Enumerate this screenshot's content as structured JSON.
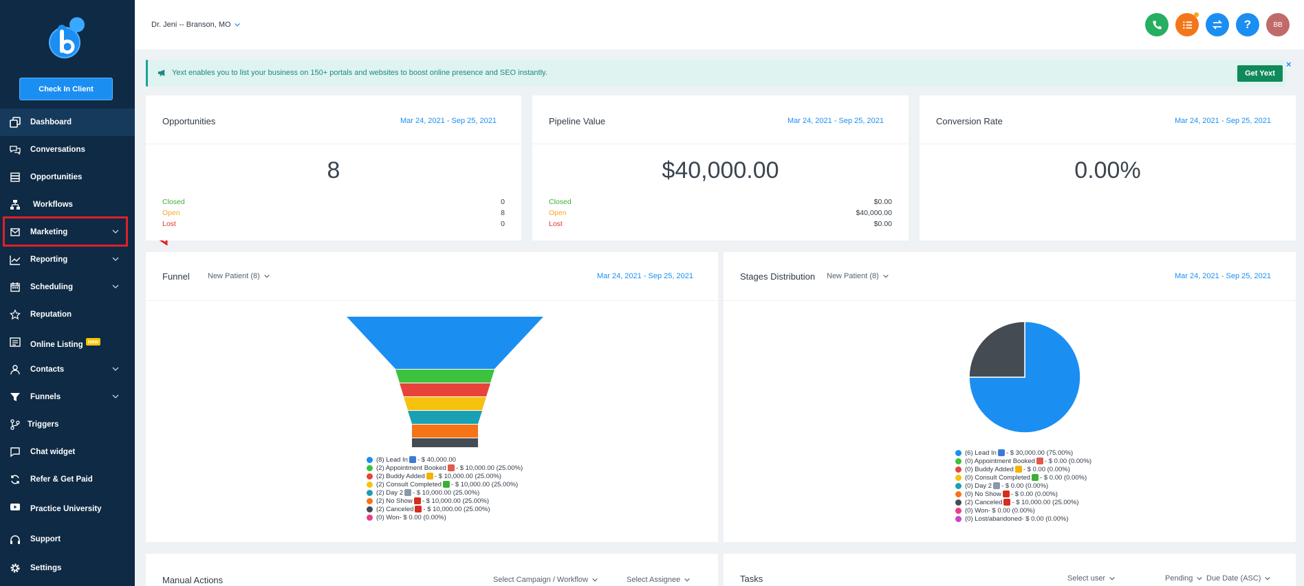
{
  "sidebar": {
    "checkin_label": "Check In Client",
    "items": [
      {
        "label": "Dashboard",
        "icon": "dashboard-icon",
        "active": true
      },
      {
        "label": "Conversations",
        "icon": "chat-bubbles-icon"
      },
      {
        "label": "Opportunities",
        "icon": "stack-icon"
      },
      {
        "label": "Workflows",
        "icon": "sitemap-icon"
      },
      {
        "label": "Marketing",
        "icon": "envelope-icon",
        "expandable": true
      },
      {
        "label": "Reporting",
        "icon": "line-chart-icon",
        "expandable": true
      },
      {
        "label": "Scheduling",
        "icon": "calendar-icon",
        "expandable": true
      },
      {
        "label": "Reputation",
        "icon": "star-icon"
      },
      {
        "label": "Online Listing",
        "icon": "listing-icon",
        "badge": "new"
      },
      {
        "label": "Contacts",
        "icon": "person-icon",
        "expandable": true
      },
      {
        "label": "Funnels",
        "icon": "filter-icon",
        "expandable": true
      },
      {
        "label": "Triggers",
        "icon": "branch-icon"
      },
      {
        "label": "Chat widget",
        "icon": "chat-widget-icon"
      },
      {
        "label": "Refer & Get Paid",
        "icon": "refresh-dollar-icon"
      },
      {
        "label": "Practice University",
        "icon": "video-icon"
      },
      {
        "label": "Support",
        "icon": "headset-icon"
      },
      {
        "label": "Settings",
        "icon": "gear-icon"
      }
    ]
  },
  "header": {
    "location": "Dr. Jeni -- Branson, MO",
    "avatar_initials": "BB",
    "help_label": "?"
  },
  "banner": {
    "text": "Yext enables you to list your business on 150+ portals and websites to boost online presence and SEO instantly.",
    "button_label": "Get Yext",
    "close_label": "×"
  },
  "cards": {
    "opportunities": {
      "title": "Opportunities",
      "date": "Mar 24, 2021 - Sep 25, 2021",
      "value": "8",
      "rows": [
        {
          "label": "Closed",
          "value": "0",
          "color": "#3cb034"
        },
        {
          "label": "Open",
          "value": "8",
          "color": "#f5a623"
        },
        {
          "label": "Lost",
          "value": "0",
          "color": "#e0342c"
        }
      ]
    },
    "pipeline": {
      "title": "Pipeline Value",
      "date": "Mar 24, 2021 - Sep 25, 2021",
      "value": "$40,000.00",
      "rows": [
        {
          "label": "Closed",
          "value": "$0.00",
          "color": "#3cb034"
        },
        {
          "label": "Open",
          "value": "$40,000.00",
          "color": "#f5a623"
        },
        {
          "label": "Lost",
          "value": "$0.00",
          "color": "#e0342c"
        }
      ]
    },
    "conversion": {
      "title": "Conversion Rate",
      "date": "Mar 24, 2021 - Sep 25, 2021",
      "value": "0.00%"
    },
    "funnel": {
      "title": "Funnel",
      "pipeline": "New Patient (8)",
      "date": "Mar 24, 2021 - Sep 25, 2021"
    },
    "stages": {
      "title": "Stages Distribution",
      "pipeline": "New Patient (8)",
      "date": "Mar 24, 2021 - Sep 25, 2021"
    },
    "manual_actions": {
      "title": "Manual Actions",
      "campaign_select": "Select Campaign / Workflow",
      "assignee_select": "Select Assignee"
    },
    "tasks": {
      "title": "Tasks",
      "user_select": "Select user",
      "status_select": "Pending",
      "sort_select": "Due Date (ASC)"
    }
  },
  "chart_data": [
    {
      "type": "funnel",
      "title": "Funnel",
      "categories": [
        "(8) Lead In",
        "(2) Appointment Booked",
        "(2) Buddy Added",
        "(2) Consult Completed",
        "(2) Day 2",
        "(2) No Show",
        "(2) Canceled",
        "(0) Won"
      ],
      "counts": [
        8,
        2,
        2,
        2,
        2,
        2,
        2,
        0
      ],
      "values": [
        40000,
        10000,
        10000,
        10000,
        10000,
        10000,
        10000,
        0
      ],
      "legend": [
        {
          "pre": "(8) Lead In",
          "post": " - $ 40,000.00",
          "color": "#1b8ef2",
          "emoji": "phone-emoji"
        },
        {
          "pre": "(2) Appointment Booked",
          "post": " - $ 10,000.00 (25.00%)",
          "color": "#3cc23c",
          "emoji": "calendar-emoji"
        },
        {
          "pre": "(2) Buddy Added",
          "post": " - $ 10,000.00 (25.00%)",
          "color": "#e8423c",
          "emoji": "smile-emoji"
        },
        {
          "pre": "(2) Consult Completed",
          "post": " - $ 10,000.00 (25.00%)",
          "color": "#f7c20d",
          "emoji": "check-emoji"
        },
        {
          "pre": "(2) Day 2",
          "post": " - $ 10,000.00 (25.00%)",
          "color": "#1aa0b4",
          "emoji": "rocket-emoji"
        },
        {
          "pre": "(2) No Show",
          "post": " - $ 10,000.00 (25.00%)",
          "color": "#f57418",
          "emoji": "cross-emoji"
        },
        {
          "pre": "(2) Canceled",
          "post": " - $ 10,000.00 (25.00%)",
          "color": "#444b52",
          "emoji": "cross-emoji"
        },
        {
          "pre": "(0) Won",
          "post": " - $ 0.00 (0.00%)",
          "color": "#e83e8c",
          "emoji": ""
        }
      ]
    },
    {
      "type": "pie",
      "title": "Stages Distribution",
      "slices": [
        {
          "label": "Lead In",
          "value": 75,
          "color": "#1b8ef2"
        },
        {
          "label": "Canceled",
          "value": 25,
          "color": "#444b52"
        }
      ],
      "legend": [
        {
          "pre": "(6) Lead In",
          "post": " - $ 30,000.00 (75.00%)",
          "color": "#1b8ef2",
          "emoji": "phone-emoji"
        },
        {
          "pre": "(0) Appointment Booked",
          "post": " - $ 0.00 (0.00%)",
          "color": "#3cc23c",
          "emoji": "calendar-emoji"
        },
        {
          "pre": "(0) Buddy Added",
          "post": " - $ 0.00 (0.00%)",
          "color": "#e8423c",
          "emoji": "smile-emoji"
        },
        {
          "pre": "(0) Consult Completed",
          "post": " - $ 0.00 (0.00%)",
          "color": "#f7c20d",
          "emoji": "check-emoji"
        },
        {
          "pre": "(0) Day 2",
          "post": " - $ 0.00 (0.00%)",
          "color": "#1aa0b4",
          "emoji": "rocket-emoji"
        },
        {
          "pre": "(0) No Show",
          "post": " - $ 0.00 (0.00%)",
          "color": "#f57418",
          "emoji": "cross-emoji"
        },
        {
          "pre": "(2) Canceled",
          "post": " - $ 10,000.00 (25.00%)",
          "color": "#444b52",
          "emoji": "cross-emoji"
        },
        {
          "pre": "(0) Won",
          "post": " - $ 0.00 (0.00%)",
          "color": "#e83e8c",
          "emoji": ""
        },
        {
          "pre": "(0) Lost/abandoned",
          "post": " - $ 0.00 (0.00%)",
          "color": "#cc44cc",
          "emoji": ""
        }
      ]
    }
  ]
}
